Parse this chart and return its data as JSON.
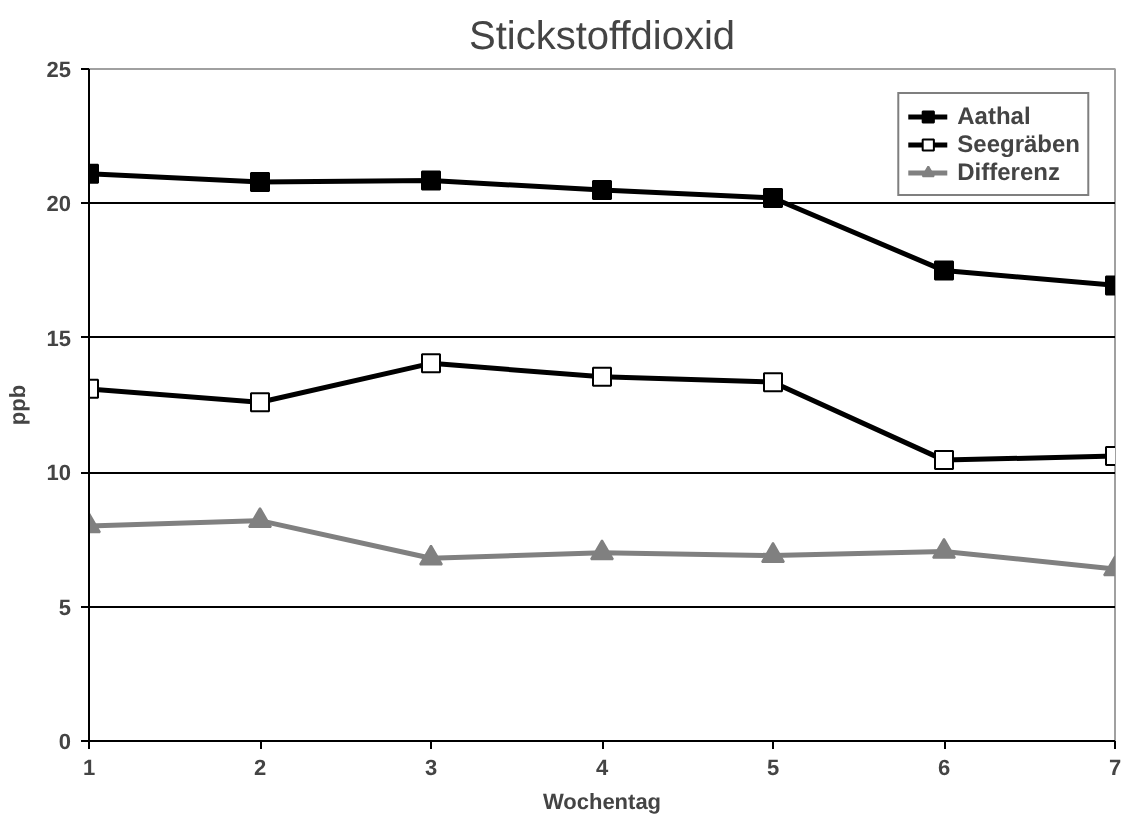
{
  "chart_data": {
    "type": "line",
    "title": "Stickstoffdioxid",
    "xlabel": "Wochentag",
    "ylabel": "ppb",
    "x": [
      1,
      2,
      3,
      4,
      5,
      6,
      7
    ],
    "series": [
      {
        "name": "Aathal",
        "color": "#000000",
        "marker": "square",
        "values": [
          21.1,
          20.8,
          20.85,
          20.5,
          20.2,
          17.5,
          16.95
        ]
      },
      {
        "name": "Seegräben",
        "color": "#000000",
        "marker": "square",
        "values": [
          13.1,
          12.6,
          14.05,
          13.55,
          13.35,
          10.45,
          10.6
        ]
      },
      {
        "name": "Differenz",
        "color": "#808080",
        "marker": "triangle",
        "values": [
          8.0,
          8.2,
          6.8,
          7.0,
          6.9,
          7.05,
          6.4
        ]
      }
    ],
    "xlim": [
      1,
      7
    ],
    "xticks": [
      1,
      2,
      3,
      4,
      5,
      6,
      7
    ],
    "ylim": [
      0,
      25
    ],
    "yticks": [
      0,
      5,
      10,
      15,
      20,
      25
    ],
    "grid": "y",
    "legend": "top right",
    "line_style": "solid"
  }
}
